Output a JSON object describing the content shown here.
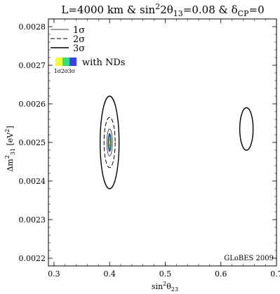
{
  "chart_data": {
    "type": "contour",
    "title_parts": [
      "L=4000 km & sin",
      "2",
      "2θ",
      "13",
      "=0.08 & δ",
      "CP",
      "=0"
    ],
    "xlabel_parts": [
      "sin",
      "2",
      "θ",
      "23"
    ],
    "ylabel_parts": [
      "Δm",
      "2",
      "31",
      " [eV",
      "2",
      "]"
    ],
    "xlim": [
      0.29,
      0.7
    ],
    "ylim": [
      0.00218,
      0.00282
    ],
    "x_ticks": [
      {
        "value": 0.3,
        "label": "0.3"
      },
      {
        "value": 0.4,
        "label": "0.4"
      },
      {
        "value": 0.5,
        "label": "0.5"
      },
      {
        "value": 0.6,
        "label": "0.6"
      },
      {
        "value": 0.7,
        "label": "0.7"
      }
    ],
    "y_ticks": [
      {
        "value": 0.0022,
        "label": "0.0022"
      },
      {
        "value": 0.0023,
        "label": "0.0023"
      },
      {
        "value": 0.0024,
        "label": "0.0024"
      },
      {
        "value": 0.0025,
        "label": "0.0025"
      },
      {
        "value": 0.0026,
        "label": "0.0026"
      },
      {
        "value": 0.0027,
        "label": "0.0027"
      },
      {
        "value": 0.0028,
        "label": "0.0028"
      }
    ],
    "legend": {
      "placement": "top-left",
      "entries": [
        {
          "label": "1σ",
          "style": "thin-solid"
        },
        {
          "label": "2σ",
          "style": "dashed"
        },
        {
          "label": "3σ",
          "style": "thick-solid"
        }
      ],
      "nd_label": "with NDs",
      "nd_sub_labels": [
        "1σ",
        "2σ",
        "3σ"
      ],
      "nd_colors": [
        "#f0ff2e",
        "#2ee07a",
        "#3a3dfd"
      ]
    },
    "series": [
      {
        "level": "1σ",
        "style": "thin-solid",
        "center": [
          0.4,
          0.0025
        ],
        "half_width": [
          0.005,
          3.5e-05
        ]
      },
      {
        "level": "2σ",
        "style": "dashed",
        "center": [
          0.4,
          0.0025
        ],
        "half_width": [
          0.01,
          6.5e-05
        ]
      },
      {
        "level": "3σ",
        "style": "thick-solid",
        "center": [
          0.4,
          0.0025
        ],
        "half_width": [
          0.017,
          0.00012
        ]
      },
      {
        "level": "3σ",
        "style": "thick-solid",
        "center": [
          0.646,
          0.002535
        ],
        "half_width": [
          0.012,
          5.5e-05
        ]
      }
    ],
    "nd_regions": [
      {
        "level": "3σ",
        "color": "#3a3dfd",
        "center": [
          0.4,
          0.0025
        ],
        "half_width": [
          0.003,
          2.4e-05
        ]
      },
      {
        "level": "2σ",
        "color": "#2ee07a",
        "center": [
          0.4,
          0.0025
        ],
        "half_width": [
          0.0022,
          1.7e-05
        ]
      },
      {
        "level": "1σ",
        "color": "#f0ff2e",
        "center": [
          0.4,
          0.0025
        ],
        "half_width": [
          0.0012,
          9e-06
        ]
      }
    ],
    "credit": "GLoBES 2009"
  }
}
